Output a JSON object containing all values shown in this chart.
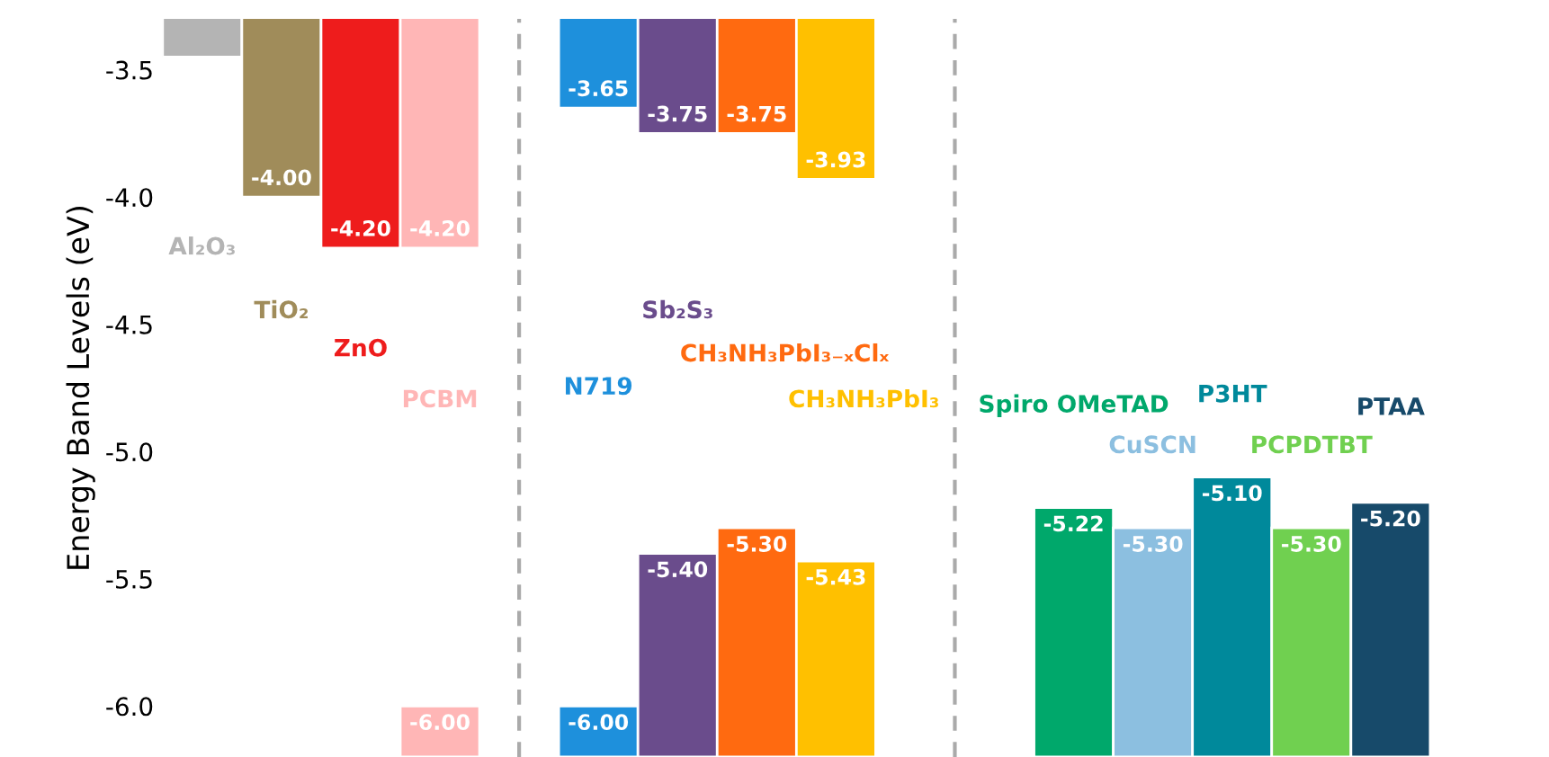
{
  "chart_data": {
    "type": "bar",
    "ylabel": "Energy Band Levels (eV)",
    "ylim": [
      -6.2,
      -3.3
    ],
    "yticks": [
      -3.5,
      {
        "value": -4.0,
        "label": "-4.0"
      },
      -4.5,
      {
        "value": -5.0,
        "label": "-5.0"
      },
      -5.5,
      {
        "value": -6.0,
        "label": "-6.0"
      }
    ],
    "tick_labels": "y",
    "categories": [
      "Al₂O₃",
      "TiO₂",
      "ZnO",
      "PCBM",
      null,
      "N719",
      "Sb₂S₃",
      "CH₃NH₃PbI₃₋ₓClₓ",
      "CH₃NH₃PbI₃",
      null,
      null,
      "Spiro OMeTAD",
      "CuSCN",
      "P3HT",
      "PCPDTBT",
      "PTAA"
    ],
    "series": [
      {
        "colors": [
          "#b4b4b4",
          "#a08c5a",
          "#ee1c1c",
          "#ffb6b6",
          null,
          "#1e90dc",
          "#6a4c8c",
          "#ff6a10",
          "#ffc000",
          null,
          null,
          "#00a86b",
          "#8cbfe0",
          "#00899b",
          "#70d050",
          "#174a6a"
        ],
        "values": [
          -3.45,
          -4.0,
          -4.2,
          -4.2,
          null,
          -3.65,
          -3.75,
          -3.75,
          -3.93,
          null,
          null,
          null,
          null,
          null,
          null,
          null
        ],
        "value_labels": [
          null,
          "-4.00",
          "-4.20",
          "-4.20",
          null,
          "-3.65",
          "-3.75",
          "-3.75",
          "-3.93",
          null,
          null,
          null,
          null,
          null,
          null,
          null
        ]
      },
      {
        "colors": [
          "#b4b4b4",
          "#a08c5a",
          "#ee1c1c",
          "#ffb6b6",
          null,
          "#1e90dc",
          "#6a4c8c",
          "#ff6a10",
          "#ffc000",
          null,
          null,
          "#00a86b",
          "#8cbfe0",
          "#00899b",
          "#70d050",
          "#174a6a"
        ],
        "base": [
          null,
          null,
          null,
          -6.2,
          null,
          -6.2,
          -6.2,
          -6.2,
          -6.2,
          null,
          null,
          -6.2,
          -6.2,
          -6.2,
          -6.2,
          -6.2
        ],
        "values": [
          null,
          null,
          null,
          0.2,
          null,
          0.2,
          0.8,
          0.9,
          0.77,
          null,
          null,
          0.98,
          0.9,
          1.1,
          0.9,
          1.0
        ],
        "value_labels": [
          null,
          null,
          null,
          "-6.00",
          null,
          "-6.00",
          "-5.40",
          "-5.30",
          "-5.43",
          null,
          null,
          "-5.22",
          "-5.30",
          "-5.10",
          "-5.30",
          "-5.20"
        ]
      }
    ]
  }
}
